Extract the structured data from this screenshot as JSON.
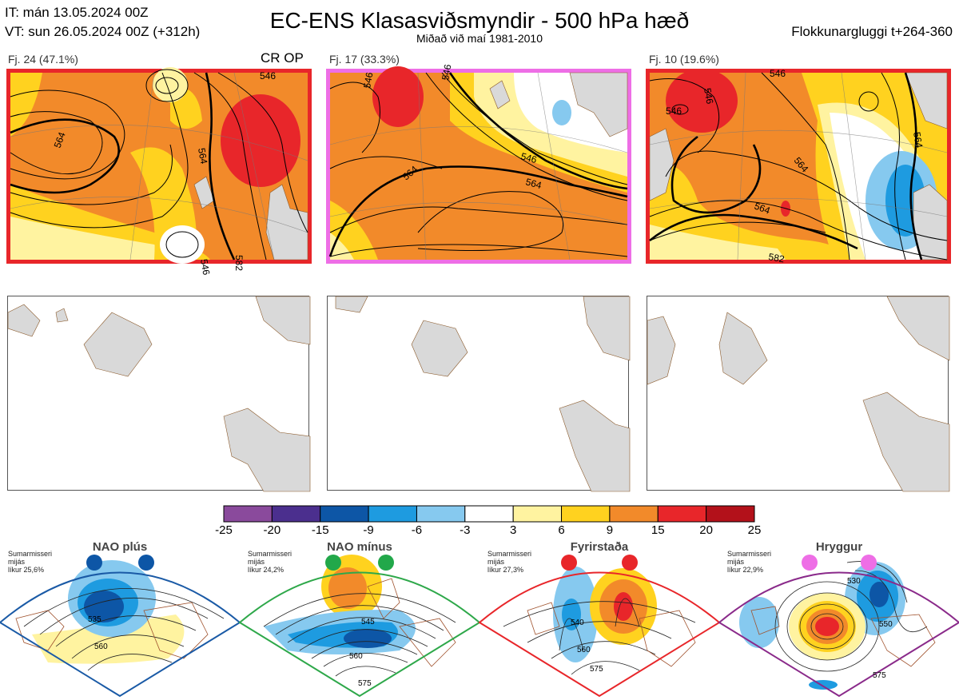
{
  "header": {
    "it": "IT: mán 13.05.2024 00Z",
    "vt": "VT: sun 26.05.2024 00Z  (+312h)",
    "title": "EC-ENS Klasasviðsmyndir - 500 hPa hæð",
    "subtitle": "Miðað við maí 1981-2010",
    "window": "Flokkunargluggi t+264-360"
  },
  "panels": [
    {
      "label": "Fj. 24 (47.1%)",
      "tag": "CR OP",
      "border": "#e8262a"
    },
    {
      "label": "Fj. 17 (33.3%)",
      "tag": "",
      "border": "#ee6ee6"
    },
    {
      "label": "Fj. 10 (19.6%)",
      "tag": "",
      "border": "#e8262a"
    }
  ],
  "contour_labels": {
    "p1": [
      "546",
      "564",
      "564",
      "546",
      "582",
      "546"
    ],
    "p2": [
      "546",
      "546",
      "564",
      "564",
      "546"
    ],
    "p3": [
      "546",
      "546",
      "546",
      "564",
      "564",
      "582",
      "564"
    ]
  },
  "colorbar": {
    "ticks": [
      "-25",
      "-20",
      "-15",
      "-9",
      "-6",
      "-3",
      "3",
      "6",
      "9",
      "15",
      "20",
      "25"
    ],
    "colors": [
      "#8a4a9c",
      "#4b2f8e",
      "#0d56a6",
      "#1e9be0",
      "#86c9ef",
      "#ffffff",
      "#fff3a0",
      "#ffd21f",
      "#f28a2a",
      "#e8262a",
      "#b3111a"
    ]
  },
  "regimes": [
    {
      "name": "NAO plús",
      "note": [
        "Sumarmisseri",
        "mijás",
        "líkur 25,6%"
      ],
      "border": "#1a5aa6",
      "dot": "#0d56a6",
      "labels": [
        "535",
        "560"
      ]
    },
    {
      "name": "NAO mínus",
      "note": [
        "Sumarmisseri",
        "mijás",
        "líkur 24,2%"
      ],
      "border": "#2ea84a",
      "dot": "#22a84a",
      "labels": [
        "545",
        "560",
        "575"
      ]
    },
    {
      "name": "Fyrirstaða",
      "note": [
        "Sumarmisseri",
        "mijás",
        "líkur 27,3%"
      ],
      "border": "#e8262a",
      "dot": "#e8262a",
      "labels": [
        "540",
        "560",
        "575"
      ]
    },
    {
      "name": "Hryggur",
      "note": [
        "Sumarmisseri",
        "mijás",
        "líkur 22,9%"
      ],
      "border": "#8a2a8a",
      "dot": "#ee6ee6",
      "labels": [
        "530",
        "550",
        "575"
      ]
    }
  ]
}
